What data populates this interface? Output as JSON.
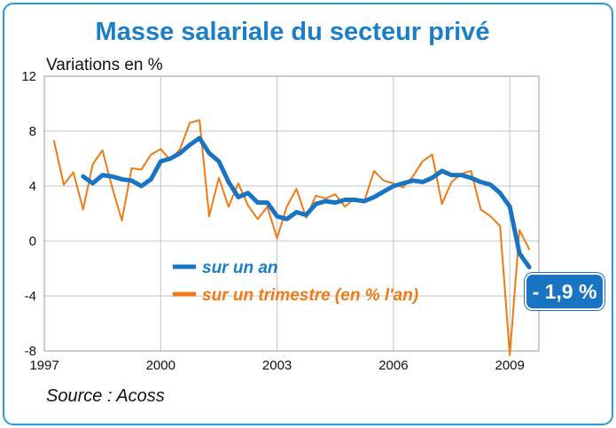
{
  "chart_data": {
    "type": "line",
    "title": "Masse salariale du secteur privé",
    "ylabel": "Variations en %",
    "xlabel": "",
    "source": "Source : Acoss",
    "ylim": [
      -8,
      12
    ],
    "yticks": [
      12,
      8,
      4,
      0,
      -4,
      -8
    ],
    "ytick_labels": [
      "12",
      "8",
      "4",
      "0",
      "-4",
      "-8"
    ],
    "xlim": [
      1997,
      2009.75
    ],
    "xticks": [
      1997,
      2000,
      2003,
      2006,
      2009
    ],
    "xtick_labels": [
      "1997",
      "2000",
      "2003",
      "2006",
      "2009"
    ],
    "grid": true,
    "legend_position": "center-right",
    "callout": "- 1,9 %",
    "series": [
      {
        "name": "sur un an",
        "color": "#1a74c4",
        "x": [
          1998.0,
          1998.25,
          1998.5,
          1998.75,
          1999.0,
          1999.25,
          1999.5,
          1999.75,
          2000.0,
          2000.25,
          2000.5,
          2000.75,
          2001.0,
          2001.25,
          2001.5,
          2001.75,
          2002.0,
          2002.25,
          2002.5,
          2002.75,
          2003.0,
          2003.25,
          2003.5,
          2003.75,
          2004.0,
          2004.25,
          2004.5,
          2004.75,
          2005.0,
          2005.25,
          2005.5,
          2005.75,
          2006.0,
          2006.25,
          2006.5,
          2006.75,
          2007.0,
          2007.25,
          2007.5,
          2007.75,
          2008.0,
          2008.25,
          2008.5,
          2008.75,
          2009.0,
          2009.25,
          2009.5
        ],
        "values": [
          4.7,
          4.2,
          4.8,
          4.7,
          4.5,
          4.4,
          4.0,
          4.5,
          5.8,
          6.0,
          6.4,
          7.0,
          7.5,
          6.4,
          5.8,
          4.3,
          3.2,
          3.5,
          2.8,
          2.8,
          1.8,
          1.6,
          2.1,
          1.9,
          2.7,
          2.9,
          2.8,
          3.0,
          3.0,
          2.9,
          3.2,
          3.6,
          4.0,
          4.2,
          4.4,
          4.3,
          4.6,
          5.1,
          4.8,
          4.8,
          4.6,
          4.3,
          4.1,
          3.5,
          2.5,
          -0.9,
          -1.9
        ]
      },
      {
        "name": "sur un trimestre (en % l'an)",
        "color": "#f07a14",
        "x": [
          1997.25,
          1997.5,
          1997.75,
          1998.0,
          1998.25,
          1998.5,
          1998.75,
          1999.0,
          1999.25,
          1999.5,
          1999.75,
          2000.0,
          2000.25,
          2000.5,
          2000.75,
          2001.0,
          2001.25,
          2001.5,
          2001.75,
          2002.0,
          2002.25,
          2002.5,
          2002.75,
          2003.0,
          2003.25,
          2003.5,
          2003.75,
          2004.0,
          2004.25,
          2004.5,
          2004.75,
          2005.0,
          2005.25,
          2005.5,
          2005.75,
          2006.0,
          2006.25,
          2006.5,
          2006.75,
          2007.0,
          2007.25,
          2007.5,
          2007.75,
          2008.0,
          2008.25,
          2008.5,
          2008.75,
          2009.0,
          2009.25,
          2009.5
        ],
        "values": [
          7.3,
          4.1,
          5.0,
          2.3,
          5.6,
          6.6,
          3.9,
          1.5,
          5.3,
          5.2,
          6.3,
          6.7,
          5.9,
          6.7,
          8.6,
          8.8,
          1.8,
          4.6,
          2.5,
          4.2,
          2.6,
          1.6,
          2.5,
          0.2,
          2.5,
          3.8,
          1.7,
          3.3,
          3.1,
          3.4,
          2.5,
          3.1,
          2.9,
          5.1,
          4.4,
          4.2,
          3.9,
          4.7,
          5.8,
          6.3,
          2.7,
          4.3,
          4.9,
          5.1,
          2.3,
          1.8,
          1.1,
          -8.3,
          0.8,
          -0.6
        ]
      }
    ]
  }
}
